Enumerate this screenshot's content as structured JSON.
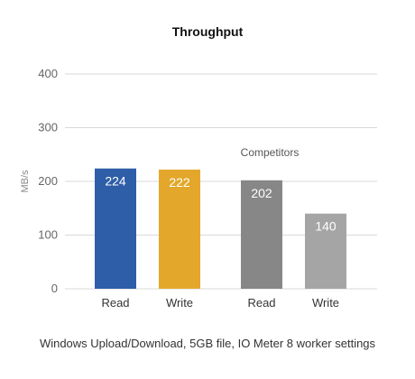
{
  "chart_data": {
    "type": "bar",
    "title": "Throughput",
    "ylabel": "MB/s",
    "xlabel": "",
    "ylim": [
      0,
      400
    ],
    "yticks": [
      0,
      100,
      200,
      300,
      400
    ],
    "grid": true,
    "categories": [
      "Read",
      "Write",
      "Read",
      "Write"
    ],
    "values": [
      224,
      222,
      202,
      140
    ],
    "colors": [
      "#2e5ea8",
      "#e3a82b",
      "#878787",
      "#a5a5a5"
    ],
    "annotation": "Competitors",
    "footnote": "Windows Upload/Download, 5GB file, IO Meter 8 worker settings"
  }
}
